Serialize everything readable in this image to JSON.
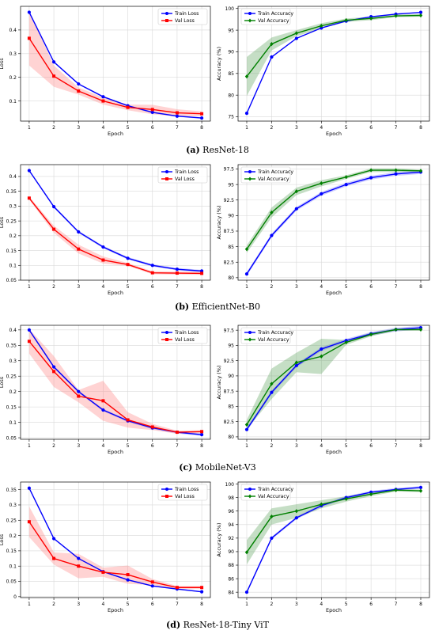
{
  "captions": [
    {
      "letter": "(a)",
      "text": "ResNet-18"
    },
    {
      "letter": "(b)",
      "text": "EfficientNet-B0"
    },
    {
      "letter": "(c)",
      "text": "MobileNet-V3"
    },
    {
      "letter": "(d)",
      "text": "ResNet-18-Tiny ViT"
    }
  ],
  "colors": {
    "train": "#0000ff",
    "val_loss": "#ff0000",
    "val_acc": "#008000",
    "band_train": "#6e6eff",
    "band_val_loss": "#ff8080",
    "band_val_acc": "#5aa05a"
  },
  "chart_data": [
    {
      "type": "line",
      "panel": "a-loss",
      "xlabel": "Epoch",
      "ylabel": "Loss",
      "x": [
        1,
        2,
        3,
        4,
        5,
        6,
        7,
        8
      ],
      "ylim": [
        0.015,
        0.5
      ],
      "yticks": [
        0.1,
        0.2,
        0.3,
        0.4
      ],
      "grid": true,
      "legend": "top-right",
      "series": [
        {
          "name": "Train Loss",
          "marker": "circle",
          "color": "train",
          "values": [
            0.475,
            0.265,
            0.172,
            0.118,
            0.08,
            0.052,
            0.036,
            0.028
          ],
          "band": [
            0.003,
            0.003,
            0.003,
            0.003,
            0.003,
            0.003,
            0.003,
            0.003
          ]
        },
        {
          "name": "Val Loss",
          "marker": "square",
          "color": "val_loss",
          "values": [
            0.365,
            0.205,
            0.142,
            0.1,
            0.073,
            0.064,
            0.05,
            0.046
          ],
          "band": [
            0.115,
            0.045,
            0.015,
            0.015,
            0.012,
            0.02,
            0.015,
            0.01
          ]
        }
      ]
    },
    {
      "type": "line",
      "panel": "a-acc",
      "xlabel": "Epoch",
      "ylabel": "Accuracy (%)",
      "x": [
        1,
        2,
        3,
        4,
        5,
        6,
        7,
        8
      ],
      "ylim": [
        74,
        100.5
      ],
      "yticks": [
        75,
        80,
        85,
        90,
        95,
        100
      ],
      "grid": true,
      "legend": "top-left",
      "series": [
        {
          "name": "Train Accuracy",
          "marker": "circle",
          "color": "train",
          "values": [
            75.8,
            88.8,
            93.1,
            95.5,
            97.1,
            98.1,
            98.7,
            99.1
          ],
          "band": [
            0.1,
            0.1,
            0.1,
            0.1,
            0.1,
            0.1,
            0.1,
            0.1
          ]
        },
        {
          "name": "Val Accuracy",
          "marker": "diamond",
          "color": "val_acc",
          "values": [
            84.3,
            91.8,
            94.3,
            96.0,
            97.3,
            97.7,
            98.3,
            98.4
          ],
          "band": [
            4.5,
            1.5,
            0.7,
            0.6,
            0.4,
            0.4,
            0.3,
            0.3
          ]
        }
      ]
    },
    {
      "type": "line",
      "panel": "b-loss",
      "xlabel": "Epoch",
      "ylabel": "Loss",
      "x": [
        1,
        2,
        3,
        4,
        5,
        6,
        7,
        8
      ],
      "ylim": [
        0.05,
        0.44
      ],
      "yticks": [
        0.05,
        0.1,
        0.15,
        0.2,
        0.25,
        0.3,
        0.35,
        0.4
      ],
      "grid": true,
      "legend": "top-right",
      "series": [
        {
          "name": "Train Loss",
          "marker": "circle",
          "color": "train",
          "values": [
            0.42,
            0.298,
            0.213,
            0.162,
            0.124,
            0.1,
            0.087,
            0.081
          ],
          "band": [
            0.003,
            0.004,
            0.004,
            0.004,
            0.004,
            0.004,
            0.004,
            0.004
          ]
        },
        {
          "name": "Val Loss",
          "marker": "square",
          "color": "val_loss",
          "values": [
            0.327,
            0.222,
            0.155,
            0.118,
            0.103,
            0.075,
            0.074,
            0.073
          ],
          "band": [
            0.005,
            0.012,
            0.015,
            0.012,
            0.005,
            0.005,
            0.005,
            0.005
          ]
        }
      ]
    },
    {
      "type": "line",
      "panel": "b-acc",
      "xlabel": "Epoch",
      "ylabel": "Accuracy (%)",
      "x": [
        1,
        2,
        3,
        4,
        5,
        6,
        7,
        8
      ],
      "ylim": [
        79.6,
        98.2
      ],
      "yticks": [
        80,
        82.5,
        85,
        87.5,
        90,
        92.5,
        95,
        97.5
      ],
      "grid": true,
      "legend": "top-left",
      "series": [
        {
          "name": "Train Accuracy",
          "marker": "circle",
          "color": "train",
          "values": [
            80.6,
            86.8,
            91.1,
            93.5,
            95.0,
            96.1,
            96.7,
            97.0
          ],
          "band": [
            0.3,
            0.3,
            0.3,
            0.3,
            0.3,
            0.3,
            0.3,
            0.3
          ]
        },
        {
          "name": "Val Accuracy",
          "marker": "diamond",
          "color": "val_acc",
          "values": [
            84.6,
            90.5,
            93.9,
            95.2,
            96.2,
            97.3,
            97.3,
            97.2
          ],
          "band": [
            0.6,
            0.8,
            0.6,
            0.5,
            0.3,
            0.3,
            0.3,
            0.2
          ]
        }
      ]
    },
    {
      "type": "line",
      "panel": "c-loss",
      "xlabel": "Epoch",
      "ylabel": "Loss",
      "x": [
        1,
        2,
        3,
        4,
        5,
        6,
        7,
        8
      ],
      "ylim": [
        0.045,
        0.415
      ],
      "yticks": [
        0.05,
        0.1,
        0.15,
        0.2,
        0.25,
        0.3,
        0.35,
        0.4
      ],
      "grid": true,
      "legend": "top-right",
      "series": [
        {
          "name": "Train Loss",
          "marker": "circle",
          "color": "train",
          "values": [
            0.4,
            0.28,
            0.2,
            0.14,
            0.105,
            0.082,
            0.068,
            0.06
          ],
          "band": [
            0.004,
            0.004,
            0.004,
            0.004,
            0.004,
            0.004,
            0.004,
            0.004
          ]
        },
        {
          "name": "Val Loss",
          "marker": "square",
          "color": "val_loss",
          "values": [
            0.363,
            0.265,
            0.185,
            0.17,
            0.108,
            0.085,
            0.068,
            0.07
          ],
          "band": [
            0.04,
            0.05,
            0.02,
            0.065,
            0.025,
            0.01,
            0.005,
            0.005
          ]
        }
      ]
    },
    {
      "type": "line",
      "panel": "c-acc",
      "xlabel": "Epoch",
      "ylabel": "Accuracy (%)",
      "x": [
        1,
        2,
        3,
        4,
        5,
        6,
        7,
        8
      ],
      "ylim": [
        79.6,
        98.3
      ],
      "yticks": [
        80,
        82.5,
        85,
        87.5,
        90,
        92.5,
        95,
        97.5
      ],
      "grid": true,
      "legend": "top-left",
      "series": [
        {
          "name": "Train Accuracy",
          "marker": "circle",
          "color": "train",
          "values": [
            81.2,
            87.3,
            91.7,
            94.4,
            95.8,
            96.9,
            97.6,
            97.9
          ],
          "band": [
            0.3,
            0.3,
            0.3,
            0.3,
            0.3,
            0.3,
            0.3,
            0.3
          ]
        },
        {
          "name": "Val Accuracy",
          "marker": "diamond",
          "color": "val_acc",
          "values": [
            82.0,
            88.7,
            92.2,
            93.2,
            95.5,
            96.8,
            97.6,
            97.6
          ],
          "band": [
            0.8,
            2.5,
            1.6,
            2.9,
            0.4,
            0.3,
            0.2,
            0.2
          ]
        }
      ]
    },
    {
      "type": "line",
      "panel": "d-loss",
      "xlabel": "Epoch",
      "ylabel": "Loss",
      "x": [
        1,
        2,
        3,
        4,
        5,
        6,
        7,
        8
      ],
      "ylim": [
        -0.003,
        0.375
      ],
      "yticks": [
        0,
        0.05,
        0.1,
        0.15,
        0.2,
        0.25,
        0.3,
        0.35
      ],
      "grid": true,
      "legend": "top-right",
      "series": [
        {
          "name": "Train Loss",
          "marker": "circle",
          "color": "train",
          "values": [
            0.355,
            0.19,
            0.125,
            0.082,
            0.055,
            0.035,
            0.025,
            0.016
          ],
          "band": [
            0.002,
            0.002,
            0.002,
            0.002,
            0.002,
            0.002,
            0.002,
            0.002
          ]
        },
        {
          "name": "Val Loss",
          "marker": "square",
          "color": "val_loss",
          "values": [
            0.245,
            0.125,
            0.1,
            0.08,
            0.072,
            0.048,
            0.03,
            0.03
          ],
          "band": [
            0.05,
            0.02,
            0.04,
            0.015,
            0.03,
            0.01,
            0.005,
            0.005
          ]
        }
      ]
    },
    {
      "type": "line",
      "panel": "d-acc",
      "xlabel": "Epoch",
      "ylabel": "Accuracy (%)",
      "x": [
        1,
        2,
        3,
        4,
        5,
        6,
        7,
        8
      ],
      "ylim": [
        83.2,
        100.3
      ],
      "yticks": [
        84,
        86,
        88,
        90,
        92,
        94,
        96,
        98,
        100
      ],
      "grid": true,
      "legend": "top-left",
      "series": [
        {
          "name": "Train Accuracy",
          "marker": "circle",
          "color": "train",
          "values": [
            84.0,
            92.0,
            95.0,
            96.8,
            98.0,
            98.8,
            99.2,
            99.5
          ],
          "band": [
            0.2,
            0.2,
            0.2,
            0.2,
            0.2,
            0.2,
            0.2,
            0.2
          ]
        },
        {
          "name": "Val Accuracy",
          "marker": "diamond",
          "color": "val_acc",
          "values": [
            89.9,
            95.2,
            96.0,
            97.0,
            97.8,
            98.5,
            99.1,
            99.0
          ],
          "band": [
            1.8,
            1.2,
            1.0,
            0.6,
            0.4,
            0.3,
            0.2,
            0.2
          ]
        }
      ]
    }
  ]
}
